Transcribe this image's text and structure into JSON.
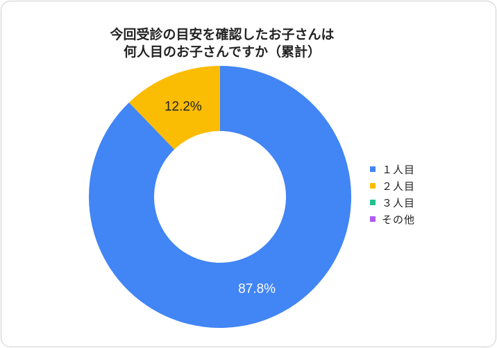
{
  "chart_data": {
    "type": "pie",
    "variant": "donut",
    "title": "今回受診の目安を確認したお子さんは何人目のお子さんですか（累計）",
    "title_lines": [
      "今回受診の目安を確認したお子さんは",
      "何人目のお子さんですか（累計）"
    ],
    "categories": [
      "１人目",
      "２人目",
      "３人目",
      "その他"
    ],
    "values": [
      87.8,
      12.2,
      0,
      0
    ],
    "labels": [
      "87.8%",
      "12.2%",
      "",
      ""
    ],
    "colors": [
      "#4285F4",
      "#FBBC04",
      "#22C08E",
      "#AE5BF0"
    ],
    "legend_position": "right"
  },
  "legend": [
    {
      "label": "１人目",
      "color": "#4285F4"
    },
    {
      "label": "２人目",
      "color": "#FBBC04"
    },
    {
      "label": "３人目",
      "color": "#22C08E"
    },
    {
      "label": "その他",
      "color": "#AE5BF0"
    }
  ]
}
